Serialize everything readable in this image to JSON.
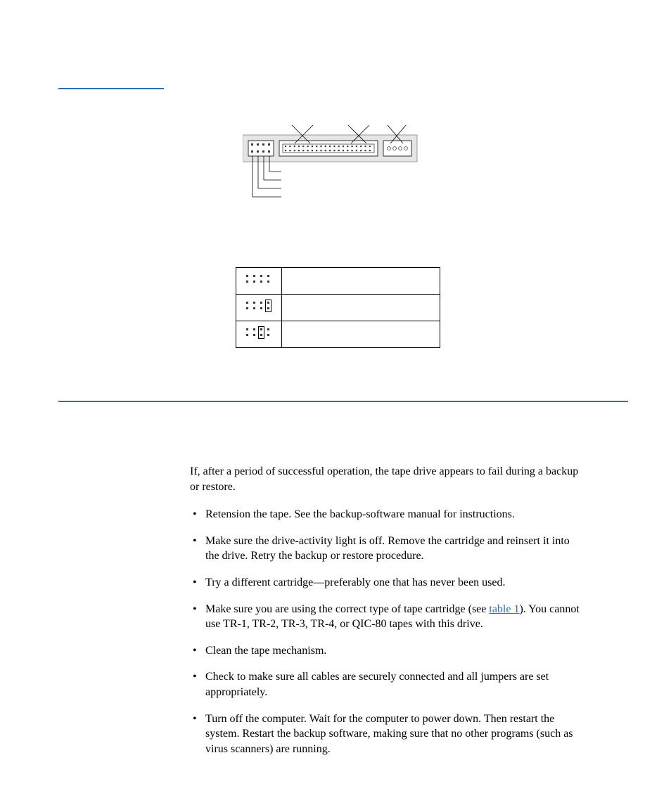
{
  "styles": {
    "rule_color": "#2a6fbf",
    "link_color": "#2a6fbf"
  },
  "diagram": {
    "connector": {
      "pin_fill": "#3a3a3a",
      "box_fill": "#e5e5e5",
      "box_stroke": "#9a9a9a"
    }
  },
  "jumper_table": {
    "rows": [
      {
        "pattern": "none",
        "label": ""
      },
      {
        "pattern": "right",
        "label": ""
      },
      {
        "pattern": "mid",
        "label": ""
      }
    ]
  },
  "intro": "If, after a period of successful operation, the tape drive appears to fail during a backup or restore.",
  "link_text": "table 1",
  "tips": [
    "Retension the tape. See the backup-software manual for instructions.",
    "Make sure the drive-activity light is off. Remove the cartridge and reinsert it into the drive. Retry the backup or restore procedure.",
    "Try a different cartridge—preferably one that has never been used.",
    {
      "pre": "Make sure you are using the correct type of tape cartridge (see ",
      "link": "table 1",
      "post": "). You cannot use TR-1, TR-2, TR-3, TR-4, or QIC-80 tapes with this drive."
    },
    "Clean the tape mechanism.",
    "Check to make sure all cables are securely connected and all jumpers are set appropriately.",
    "Turn off the computer. Wait for the computer to power down. Then restart the system. Restart the backup software, making sure that no other programs (such as virus scanners) are running."
  ]
}
